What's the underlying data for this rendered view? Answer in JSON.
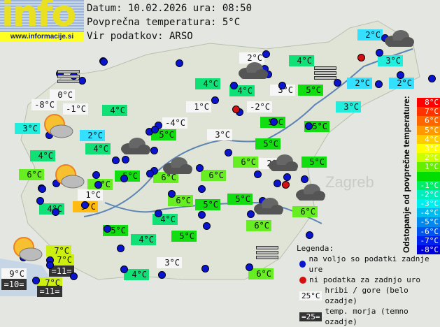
{
  "logo": {
    "text": "info",
    "url": "www.informacije.si"
  },
  "header": {
    "date_line": "Datum: 10.02.2026 ura: 08:50",
    "avg_line": "Povprečna temperatura: 5°C",
    "source_line": "Vir podatkov: ARSO"
  },
  "colors": {
    "mountain": "#f6f6f6",
    "sea": "#333333",
    "t2": "#33e0ff",
    "t3": "#22eedd",
    "t4": "#11e077",
    "t5": "#11dd11",
    "t6": "#66ee22",
    "t7": "#ccee11",
    "t9": "#ffbb11",
    "dot_ok": "#0a14d0",
    "dot_missing": "#d51010"
  },
  "stations": [
    {
      "t": "0°C",
      "k": "mountain"
    },
    {
      "t": "-8°C",
      "k": "mountain"
    },
    {
      "t": "-1°C",
      "k": "mountain"
    },
    {
      "t": "3°C",
      "k": "t3"
    },
    {
      "t": "2°C",
      "k": "t2"
    },
    {
      "t": "4°C",
      "k": "t4"
    },
    {
      "t": "4°C",
      "k": "t4"
    },
    {
      "t": "4°C",
      "k": "t4"
    },
    {
      "t": "1°C",
      "k": "mountain"
    },
    {
      "t": "-4°C",
      "k": "mountain"
    },
    {
      "t": "5°C",
      "k": "t5"
    },
    {
      "t": "3°C",
      "k": "mountain"
    },
    {
      "t": "2°C",
      "k": "mountain"
    },
    {
      "t": "4°C",
      "k": "t4"
    },
    {
      "t": "4°C",
      "k": "t4"
    },
    {
      "t": "4°C",
      "k": "t4"
    },
    {
      "t": "3°C",
      "k": "mountain"
    },
    {
      "t": "5°C",
      "k": "t5"
    },
    {
      "t": "2°C",
      "k": "t2"
    },
    {
      "t": "3°C",
      "k": "t3"
    },
    {
      "t": "2°C",
      "k": "t2"
    },
    {
      "t": "2°C",
      "k": "t2"
    },
    {
      "t": "3°C",
      "k": "t3"
    },
    {
      "t": "-2°C",
      "k": "mountain"
    },
    {
      "t": "5°C",
      "k": "t5"
    },
    {
      "t": "5°C",
      "k": "t5"
    },
    {
      "t": "5°C",
      "k": "t5"
    },
    {
      "t": "5°C",
      "k": "t5"
    },
    {
      "t": "6°C",
      "k": "t6"
    },
    {
      "t": "2°C",
      "k": "mountain"
    },
    {
      "t": "6°C",
      "k": "t6"
    },
    {
      "t": "6°C",
      "k": "t6"
    },
    {
      "t": "5°C",
      "k": "t5"
    },
    {
      "t": "6°C",
      "k": "t6"
    },
    {
      "t": "6°C",
      "k": "t6"
    },
    {
      "t": "1°C",
      "k": "mountain"
    },
    {
      "t": "9°C",
      "k": "t9"
    },
    {
      "t": "4°C",
      "k": "t4"
    },
    {
      "t": "6°C",
      "k": "t6"
    },
    {
      "t": "5°C",
      "k": "t5"
    },
    {
      "t": "5°C",
      "k": "t5"
    },
    {
      "t": "6°C",
      "k": "t6"
    },
    {
      "t": "6°C",
      "k": "t6"
    },
    {
      "t": "5°C",
      "k": "t5"
    },
    {
      "t": "4°C",
      "k": "t4"
    },
    {
      "t": "4°C",
      "k": "t4"
    },
    {
      "t": "5°C",
      "k": "t5"
    },
    {
      "t": "3°C",
      "k": "mountain"
    },
    {
      "t": "4°C",
      "k": "t4"
    },
    {
      "t": "6°C",
      "k": "t6"
    },
    {
      "t": "7°C",
      "k": "t7"
    },
    {
      "t": "7°C",
      "k": "t7"
    },
    {
      "t": "7°C",
      "k": "t7"
    },
    {
      "t": "9°C",
      "k": "mountain"
    },
    {
      "t": "=10=",
      "k": "sea"
    },
    {
      "t": "=11=",
      "k": "sea"
    },
    {
      "t": "=11=",
      "k": "sea"
    }
  ],
  "scale": {
    "title": "Odstopanje od povprečne temperature:",
    "items": [
      {
        "l": "8°C",
        "c": "#ff0000"
      },
      {
        "l": "7°C",
        "c": "#ff3300"
      },
      {
        "l": "6°C",
        "c": "#ff6600"
      },
      {
        "l": "5°C",
        "c": "#ff9900"
      },
      {
        "l": "4°C",
        "c": "#ffcc00"
      },
      {
        "l": "3°C",
        "c": "#ffff00"
      },
      {
        "l": "2°C",
        "c": "#ccff00"
      },
      {
        "l": "1°C",
        "c": "#66ee00"
      },
      {
        "l": "",
        "c": "#00dd00"
      },
      {
        "l": "-1°C",
        "c": "#00ee66"
      },
      {
        "l": "-2°C",
        "c": "#00eebb"
      },
      {
        "l": "-3°C",
        "c": "#00eeee"
      },
      {
        "l": "-4°C",
        "c": "#00bbee"
      },
      {
        "l": "-5°C",
        "c": "#0088ee"
      },
      {
        "l": "-6°C",
        "c": "#0055ee"
      },
      {
        "l": "-7°C",
        "c": "#0022ee"
      },
      {
        "l": "-8°C",
        "c": "#0000dd"
      }
    ]
  },
  "legend": {
    "title": "Legenda:",
    "ok": "na voljo so podatki zadnje ure",
    "missing": "ni podatka za zadnjo uro",
    "mountain_sample": "25°C",
    "mountain": "hribi / gore (belo ozadje)",
    "sea_sample": "=25=",
    "sea": "temp. morja (temno ozadje)"
  },
  "map_labels": {
    "zagreb": "Zagreb"
  }
}
